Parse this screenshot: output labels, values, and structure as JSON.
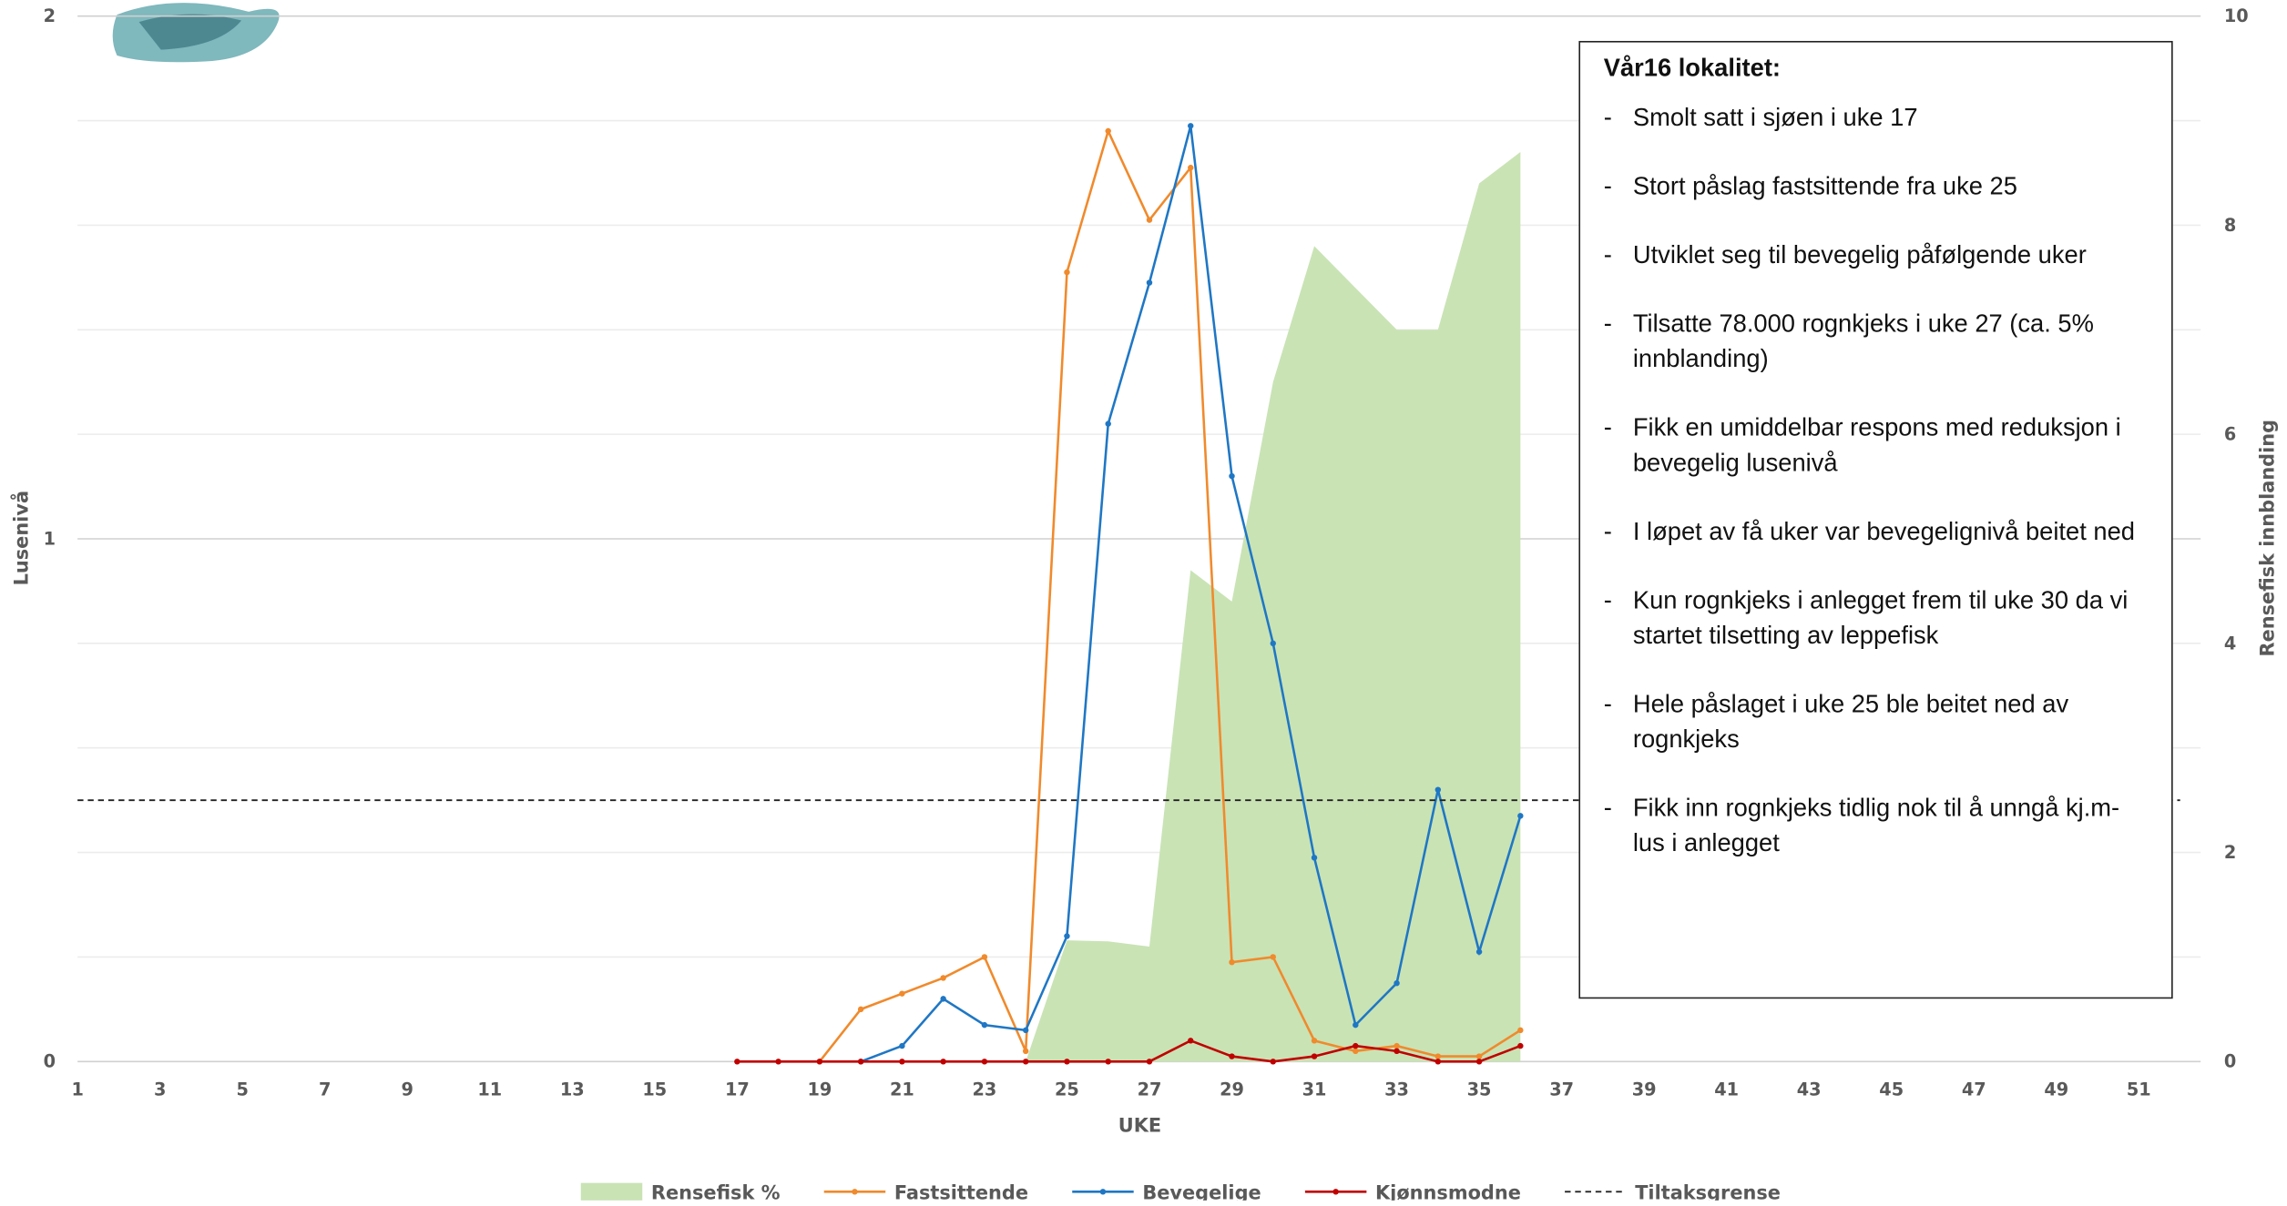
{
  "chart_data": {
    "type": "line",
    "x": [
      17,
      18,
      19,
      20,
      21,
      22,
      23,
      24,
      25,
      26,
      27,
      28,
      29,
      30,
      31,
      32,
      33,
      34,
      35,
      36
    ],
    "xlim": [
      1,
      52.5
    ],
    "xticks": [
      1,
      3,
      5,
      7,
      9,
      11,
      13,
      15,
      17,
      19,
      21,
      23,
      25,
      27,
      29,
      31,
      33,
      35,
      37,
      39,
      41,
      43,
      45,
      47,
      49,
      51
    ],
    "xlabel": "UKE",
    "ylabel": "Lusenivå",
    "y2label": "Rensefisk innblanding",
    "ylim": [
      0,
      2
    ],
    "yticks": [
      0,
      1,
      2
    ],
    "yminorticks": [
      0.2,
      0.4,
      0.6,
      0.8,
      1.2,
      1.4,
      1.6,
      1.8
    ],
    "y2lim": [
      0,
      10
    ],
    "y2ticks": [
      0,
      2,
      4,
      6,
      8,
      10
    ],
    "grid": true,
    "legend": "bottom",
    "series": [
      {
        "name": "Rensefisk %",
        "mark": "area",
        "axis": "y2",
        "color": "#c9e3b5",
        "values": [
          null,
          null,
          null,
          null,
          null,
          null,
          null,
          0,
          1.16,
          1.15,
          1.1,
          4.7,
          4.4,
          6.5,
          7.8,
          7.4,
          7.0,
          7.0,
          8.4,
          8.7
        ]
      },
      {
        "name": "Fastsittende",
        "mark": "line",
        "color": "#f08a2c",
        "values": [
          null,
          null,
          0,
          0.1,
          0.13,
          0.16,
          0.2,
          0.02,
          1.51,
          1.78,
          1.61,
          1.71,
          0.19,
          0.2,
          0.04,
          0.02,
          0.03,
          0.01,
          0.01,
          0.06
        ]
      },
      {
        "name": "Bevegelige",
        "mark": "line",
        "color": "#1f77c4",
        "values": [
          null,
          null,
          null,
          0,
          0.03,
          0.12,
          0.07,
          0.06,
          0.24,
          1.22,
          1.49,
          1.79,
          1.12,
          0.8,
          0.39,
          0.07,
          0.15,
          0.52,
          0.21,
          0.47
        ]
      },
      {
        "name": "Kjønnsmodne",
        "mark": "line",
        "color": "#c00000",
        "values": [
          0,
          0,
          0,
          0,
          0,
          0,
          0,
          0,
          0,
          0,
          0,
          0.04,
          0.01,
          0,
          0.01,
          0.03,
          0.02,
          0,
          0,
          0.03
        ]
      }
    ],
    "threshold": {
      "name": "Tiltaksgrense",
      "value": 0.5,
      "color": "#222"
    }
  },
  "note": {
    "title": "Vår16 lokalitet:",
    "items": [
      "Smolt satt i sjøen i uke 17",
      "Stort påslag fastsittende fra uke 25",
      "Utviklet seg til bevegelig påfølgende uker",
      "Tilsatte 78.000 rognkjeks i uke 27 (ca. 5% innblanding)",
      "Fikk en umiddelbar respons med reduksjon i bevegelig lusenivå",
      "I løpet av få uker var bevegelignivå beitet ned",
      "Kun rognkjeks i anlegget frem til uke 30 da vi startet tilsetting av leppefisk",
      "Hele påslaget i uke 25 ble beitet ned av rognkjeks",
      "Fikk inn rognkjeks tidlig nok til å unngå kj.m-lus i anlegget"
    ]
  }
}
